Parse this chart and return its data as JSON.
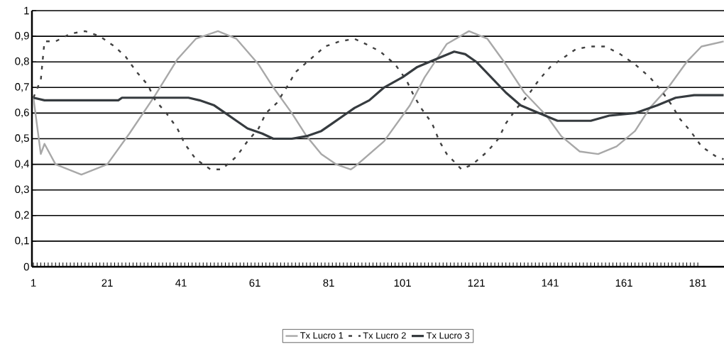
{
  "chart_data": {
    "type": "line",
    "xlim": [
      0.6,
      188.1
    ],
    "ylim": [
      0,
      1
    ],
    "xticks": [
      1,
      21,
      41,
      61,
      81,
      101,
      121,
      141,
      161,
      181
    ],
    "yticks": [
      0,
      {
        "value": 0.1,
        "label": "0,1"
      },
      {
        "value": 0.2,
        "label": "0,2"
      },
      {
        "value": 0.3,
        "label": "0,3"
      },
      {
        "value": 0.4,
        "label": "0,4"
      },
      {
        "value": 0.5,
        "label": "0,5"
      },
      {
        "value": 0.6,
        "label": "0,6"
      },
      {
        "value": 0.7,
        "label": "0,7"
      },
      {
        "value": 0.8,
        "label": "0,8"
      },
      {
        "value": 0.9,
        "label": "0,9"
      },
      1
    ],
    "grid": "y",
    "legend": "bottom",
    "marker": "none",
    "series": [
      {
        "name": "Tx Lucro 1",
        "color": "#a8a8a8",
        "line_style": "solid",
        "x": [
          1,
          3,
          4,
          7,
          14,
          21,
          27,
          34,
          40,
          45,
          51,
          56,
          62,
          66,
          71,
          75,
          79,
          83,
          87,
          88,
          96,
          103,
          107,
          113,
          119,
          124,
          129,
          134,
          140,
          144,
          149,
          154,
          159,
          164,
          168,
          173,
          178,
          182,
          188
        ],
        "values": [
          0.66,
          0.44,
          0.48,
          0.4,
          0.36,
          0.4,
          0.52,
          0.67,
          0.81,
          0.89,
          0.92,
          0.89,
          0.79,
          0.7,
          0.6,
          0.51,
          0.44,
          0.4,
          0.38,
          0.39,
          0.49,
          0.63,
          0.74,
          0.87,
          0.92,
          0.89,
          0.79,
          0.68,
          0.59,
          0.51,
          0.45,
          0.44,
          0.47,
          0.53,
          0.62,
          0.7,
          0.8,
          0.86,
          0.88
        ]
      },
      {
        "name": "Tx Lucro 2",
        "color": "#404040",
        "line_style": "dashed",
        "x": [
          1,
          3,
          4,
          7,
          11,
          15,
          19,
          23,
          26,
          29,
          32,
          34,
          37,
          40,
          42,
          45,
          49,
          52,
          56,
          59,
          62,
          64,
          67,
          70,
          72,
          76,
          80,
          84,
          88,
          91,
          95,
          99,
          102,
          104,
          106,
          109,
          111,
          113,
          117,
          120,
          124,
          127,
          129,
          132,
          135,
          138,
          141,
          145,
          148,
          152,
          156,
          160,
          164,
          168,
          171,
          174,
          176,
          179,
          182,
          186,
          188
        ],
        "values": [
          0.66,
          0.73,
          0.88,
          0.88,
          0.91,
          0.92,
          0.9,
          0.86,
          0.82,
          0.76,
          0.71,
          0.65,
          0.6,
          0.54,
          0.48,
          0.42,
          0.38,
          0.38,
          0.43,
          0.49,
          0.54,
          0.6,
          0.64,
          0.71,
          0.76,
          0.81,
          0.86,
          0.88,
          0.89,
          0.87,
          0.84,
          0.79,
          0.73,
          0.67,
          0.62,
          0.56,
          0.49,
          0.44,
          0.38,
          0.4,
          0.45,
          0.5,
          0.56,
          0.62,
          0.67,
          0.73,
          0.78,
          0.82,
          0.85,
          0.86,
          0.86,
          0.83,
          0.79,
          0.74,
          0.69,
          0.63,
          0.58,
          0.53,
          0.47,
          0.43,
          0.42
        ]
      },
      {
        "name": "Tx Lucro 3",
        "color": "#363b3f",
        "line_style": "solid",
        "x": [
          1,
          4,
          24,
          25,
          43,
          46,
          50,
          53,
          56,
          59,
          63,
          66,
          71,
          75,
          79,
          82,
          85,
          88,
          92,
          96,
          101,
          105,
          110,
          115,
          118,
          121,
          125,
          129,
          133,
          138,
          143,
          152,
          157,
          164,
          170,
          175,
          180,
          188
        ],
        "values": [
          0.66,
          0.65,
          0.65,
          0.66,
          0.66,
          0.65,
          0.63,
          0.6,
          0.57,
          0.54,
          0.52,
          0.5,
          0.5,
          0.51,
          0.53,
          0.56,
          0.59,
          0.62,
          0.65,
          0.7,
          0.74,
          0.78,
          0.81,
          0.84,
          0.83,
          0.8,
          0.74,
          0.68,
          0.63,
          0.6,
          0.57,
          0.57,
          0.59,
          0.6,
          0.63,
          0.66,
          0.67,
          0.67
        ]
      }
    ]
  }
}
